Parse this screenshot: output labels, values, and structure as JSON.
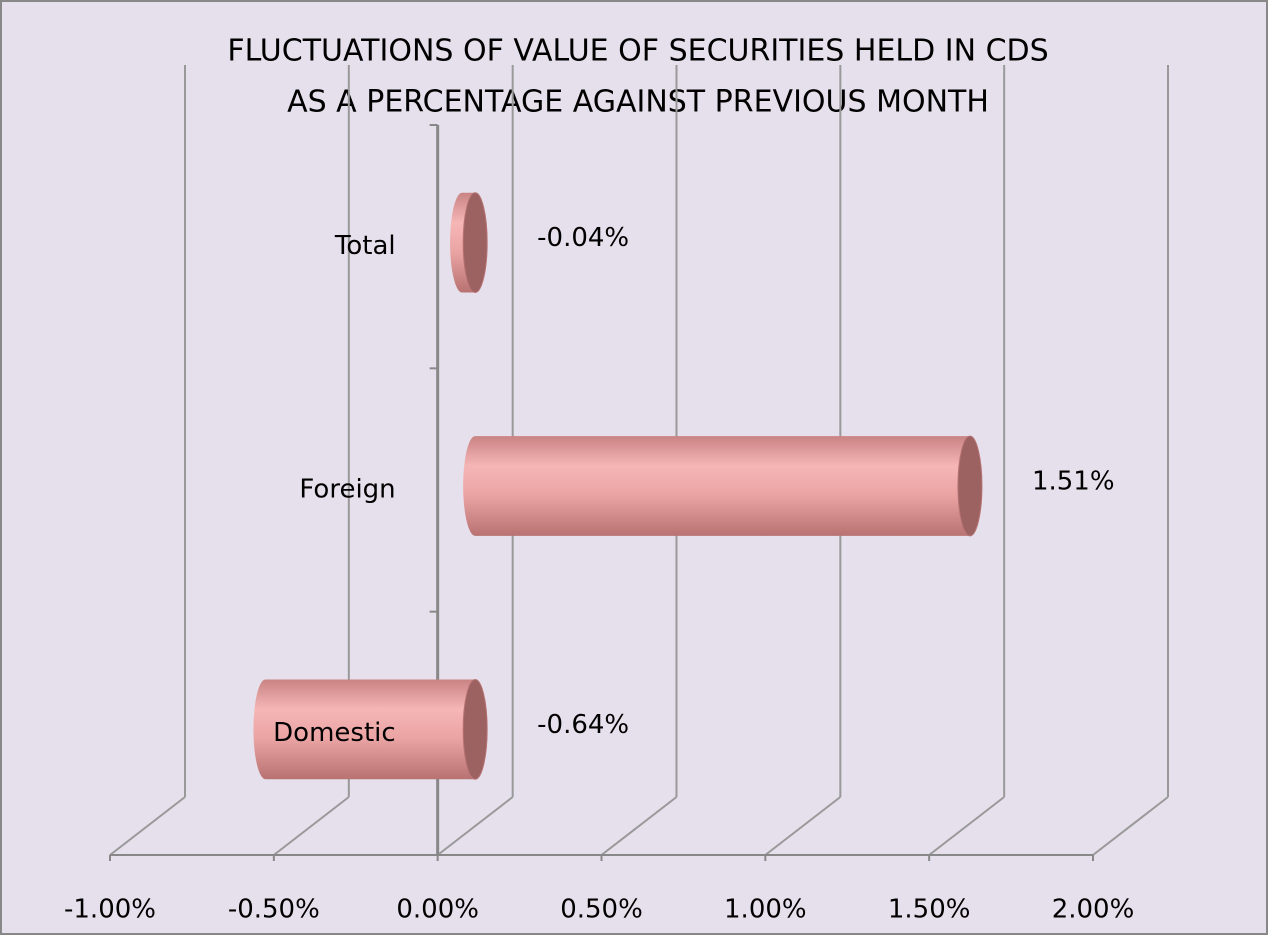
{
  "chart_data": {
    "type": "bar",
    "orientation": "horizontal",
    "title": [
      "FLUCTUATIONS OF VALUE OF SECURITIES HELD IN CDS",
      "AS A PERCENTAGE AGAINST PREVIOUS MONTH"
    ],
    "categories": [
      "Total",
      "Foreign",
      "Domestic"
    ],
    "values": [
      -0.04,
      1.51,
      -0.64
    ],
    "value_labels": [
      "-0.04%",
      "1.51%",
      "-0.64%"
    ],
    "color": "#eaa3a3",
    "xlim": [
      -1,
      2
    ],
    "xticks": [
      {
        "value": -1,
        "label": "-1.00%"
      },
      {
        "value": -0.5,
        "label": "-0.50%"
      },
      {
        "value": 0,
        "label": "0.00%"
      },
      {
        "value": 0.5,
        "label": "0.50%"
      },
      {
        "value": 1,
        "label": "1.00%"
      },
      {
        "value": 1.5,
        "label": "1.50%"
      },
      {
        "value": 2,
        "label": "2.00%"
      }
    ],
    "grid": true
  }
}
